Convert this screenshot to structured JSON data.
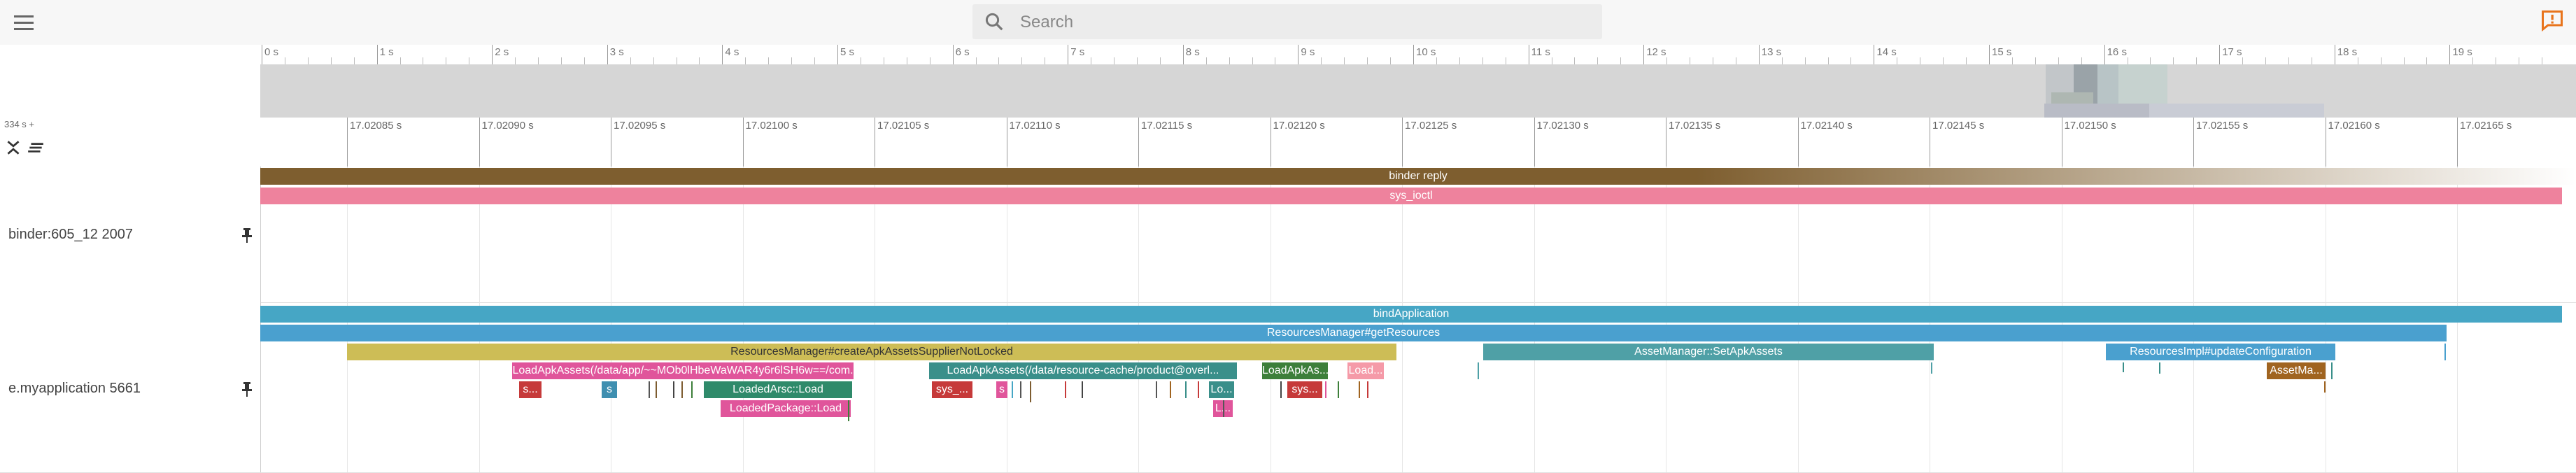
{
  "search": {
    "placeholder": "Search"
  },
  "overview": {
    "labels": [
      "0 s",
      "1 s",
      "2 s",
      "3 s",
      "4 s",
      "5 s",
      "6 s",
      "7 s",
      "8 s",
      "9 s",
      "10 s",
      "11 s",
      "12 s",
      "13 s",
      "14 s",
      "15 s",
      "16 s",
      "17 s",
      "18 s",
      "19 s"
    ]
  },
  "axis": {
    "scale_label": "334 s +",
    "labels": [
      "17.02085 s",
      "17.02090 s",
      "17.02095 s",
      "17.02100 s",
      "17.02105 s",
      "17.02110 s",
      "17.02115 s",
      "17.02120 s",
      "17.02125 s",
      "17.02130 s",
      "17.02135 s",
      "17.02140 s",
      "17.02145 s",
      "17.02150 s",
      "17.02155 s",
      "17.02160 s",
      "17.02165 s"
    ]
  },
  "tracks": {
    "binder": {
      "name": "binder:605_12 2007"
    },
    "app": {
      "name": "e.myapplication 5661"
    }
  },
  "slices": {
    "binder_reply": "binder reply",
    "sys_ioctl": "sys_ioctl",
    "bind_application": "bindApplication",
    "get_resources": "ResourcesManager#getResources",
    "create_apk_assets": "ResourcesManager#createApkAssetsSupplierNotLocked",
    "set_apk_assets": "AssetManager::SetApkAssets",
    "update_configuration": "ResourcesImpl#updateConfiguration",
    "asset_ma": "AssetMa...",
    "load_apk_1": "LoadApkAssets(/data/app/~~MOb0lHbeWaWAR4y6r6lSH6w==/com.",
    "load_apk_2": "LoadApkAssets(/data/resource-cache/product@overl...",
    "load_apk_short": "LoadApkAs...",
    "load_dots": "Load...",
    "loaded_arsc": "LoadedArsc::Load",
    "loaded_package": "LoadedPackage::Load",
    "s_dots": "s...",
    "s_single": "s",
    "sys_dots": "sys_...",
    "s_single_2": "s",
    "lo_dots": "Lo...",
    "sys_dots_2": "sys...",
    "l_dots": "L..."
  },
  "colors": {
    "binder_reply": "#7e5e2f",
    "sys_ioctl": "#ee829d",
    "bind_application": "#46a6c5",
    "get_resources": "#4aa0cf",
    "create_apk_assets": "#cdbd56",
    "set_apk_assets": "#4fa0a6",
    "pink": "#e0559b",
    "teal": "#3a8f8a",
    "green": "#3d7f3a",
    "red": "#c63a3a",
    "brown": "#a06420"
  }
}
